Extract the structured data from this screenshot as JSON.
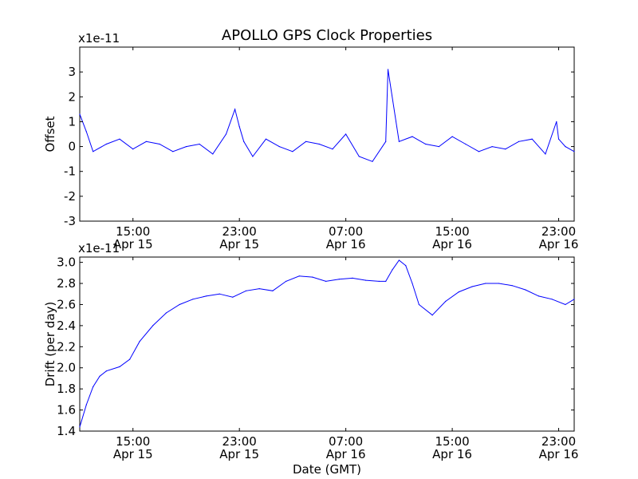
{
  "figure": {
    "title": "APOLLO GPS Clock Properties"
  },
  "chart_data": [
    {
      "type": "line",
      "title": "APOLLO GPS Clock Properties",
      "xlabel": "",
      "ylabel": "Offset",
      "y_scale_label": "x1e-11",
      "ylim": [
        -3,
        4
      ],
      "y_ticks": [
        "-3",
        "-2",
        "-1",
        "0",
        "1",
        "2",
        "3"
      ],
      "xlim": [
        "Apr 15 11:00",
        "Apr 17 00:10"
      ],
      "x_ticks": [
        {
          "time": "15:00",
          "date": "Apr 15"
        },
        {
          "time": "23:00",
          "date": "Apr 15"
        },
        {
          "time": "07:00",
          "date": "Apr 16"
        },
        {
          "time": "15:00",
          "date": "Apr 16"
        },
        {
          "time": "23:00",
          "date": "Apr 16"
        }
      ],
      "color": "#0000ff",
      "series": [
        {
          "x": [
            "Apr 15 11:00",
            "Apr 15 11:30",
            "Apr 15 12:00",
            "Apr 15 13:00",
            "Apr 15 14:00",
            "Apr 15 15:00",
            "Apr 15 16:00",
            "Apr 15 17:00",
            "Apr 15 18:00",
            "Apr 15 19:00",
            "Apr 15 20:00",
            "Apr 15 21:00",
            "Apr 15 22:00",
            "Apr 15 22:40",
            "Apr 15 23:00",
            "Apr 15 23:20",
            "Apr 16 00:00",
            "Apr 16 01:00",
            "Apr 16 02:00",
            "Apr 16 03:00",
            "Apr 16 04:00",
            "Apr 16 05:00",
            "Apr 16 06:00",
            "Apr 16 07:00",
            "Apr 16 08:00",
            "Apr 16 09:00",
            "Apr 16 10:00",
            "Apr 16 10:10",
            "Apr 16 11:00",
            "Apr 16 12:00",
            "Apr 16 13:00",
            "Apr 16 14:00",
            "Apr 16 15:00",
            "Apr 16 16:00",
            "Apr 16 17:00",
            "Apr 16 18:00",
            "Apr 16 19:00",
            "Apr 16 20:00",
            "Apr 16 21:00",
            "Apr 16 22:00",
            "Apr 16 22:50",
            "Apr 16 23:00",
            "Apr 16 23:30",
            "Apr 17 00:10"
          ],
          "values": [
            1.3,
            0.6,
            -0.2,
            0.1,
            0.3,
            -0.1,
            0.2,
            0.1,
            -0.2,
            0.0,
            0.1,
            -0.3,
            0.5,
            1.5,
            0.8,
            0.2,
            -0.4,
            0.3,
            0.0,
            -0.2,
            0.2,
            0.1,
            -0.1,
            0.5,
            -0.4,
            -0.6,
            0.2,
            3.1,
            0.2,
            0.4,
            0.1,
            0.0,
            0.4,
            0.1,
            -0.2,
            0.0,
            -0.1,
            0.2,
            0.3,
            -0.3,
            1.0,
            0.3,
            0.0,
            -0.2
          ]
        }
      ]
    },
    {
      "type": "line",
      "title": "",
      "xlabel": "Date (GMT)",
      "ylabel": "Drift (per day)",
      "y_scale_label": "x1e-11",
      "ylim": [
        1.4,
        3.05
      ],
      "y_ticks": [
        "1.4",
        "1.6",
        "1.8",
        "2.0",
        "2.2",
        "2.4",
        "2.6",
        "2.8",
        "3.0"
      ],
      "xlim": [
        "Apr 15 11:00",
        "Apr 17 00:10"
      ],
      "x_ticks": [
        {
          "time": "15:00",
          "date": "Apr 15"
        },
        {
          "time": "23:00",
          "date": "Apr 15"
        },
        {
          "time": "07:00",
          "date": "Apr 16"
        },
        {
          "time": "15:00",
          "date": "Apr 16"
        },
        {
          "time": "23:00",
          "date": "Apr 16"
        }
      ],
      "color": "#0000ff",
      "series": [
        {
          "x": [
            "Apr 15 11:00",
            "Apr 15 11:30",
            "Apr 15 12:00",
            "Apr 15 12:30",
            "Apr 15 13:00",
            "Apr 15 14:00",
            "Apr 15 14:45",
            "Apr 15 15:30",
            "Apr 15 16:30",
            "Apr 15 17:30",
            "Apr 15 18:30",
            "Apr 15 19:30",
            "Apr 15 20:30",
            "Apr 15 21:30",
            "Apr 15 22:30",
            "Apr 15 23:30",
            "Apr 16 00:30",
            "Apr 16 01:30",
            "Apr 16 02:30",
            "Apr 16 03:30",
            "Apr 16 04:30",
            "Apr 16 05:30",
            "Apr 16 06:30",
            "Apr 16 07:30",
            "Apr 16 08:30",
            "Apr 16 09:30",
            "Apr 16 10:00",
            "Apr 16 10:30",
            "Apr 16 11:00",
            "Apr 16 11:30",
            "Apr 16 12:00",
            "Apr 16 12:30",
            "Apr 16 13:30",
            "Apr 16 14:30",
            "Apr 16 15:30",
            "Apr 16 16:30",
            "Apr 16 17:30",
            "Apr 16 18:30",
            "Apr 16 19:30",
            "Apr 16 20:30",
            "Apr 16 21:30",
            "Apr 16 22:30",
            "Apr 16 23:30",
            "Apr 17 00:10"
          ],
          "values": [
            1.44,
            1.65,
            1.82,
            1.92,
            1.97,
            2.01,
            2.08,
            2.25,
            2.4,
            2.52,
            2.6,
            2.65,
            2.68,
            2.7,
            2.67,
            2.73,
            2.75,
            2.73,
            2.82,
            2.87,
            2.86,
            2.82,
            2.84,
            2.85,
            2.83,
            2.82,
            2.82,
            2.93,
            3.02,
            2.97,
            2.8,
            2.6,
            2.5,
            2.63,
            2.72,
            2.77,
            2.8,
            2.8,
            2.78,
            2.74,
            2.68,
            2.65,
            2.6,
            2.65
          ]
        }
      ]
    }
  ]
}
